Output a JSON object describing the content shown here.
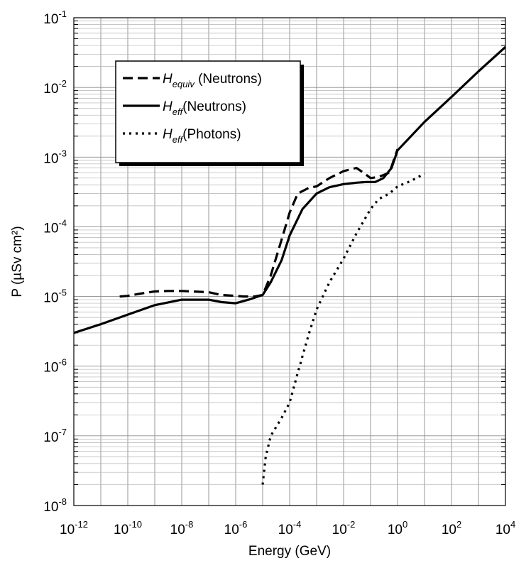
{
  "chart_data": {
    "type": "line",
    "xlabel": "Energy (GeV)",
    "ylabel": "P (µSv cm²)",
    "x_scale": "log",
    "y_scale": "log",
    "xlim": [
      1e-12,
      10000.0
    ],
    "ylim": [
      1e-08,
      0.1
    ],
    "grid": true,
    "legend_position": "top-left",
    "x_ticks": [
      {
        "base": "10",
        "exp": "-12"
      },
      {
        "base": "10",
        "exp": "-10"
      },
      {
        "base": "10",
        "exp": "-8"
      },
      {
        "base": "10",
        "exp": "-6"
      },
      {
        "base": "10",
        "exp": "-4"
      },
      {
        "base": "10",
        "exp": "-2"
      },
      {
        "base": "10",
        "exp": "0"
      },
      {
        "base": "10",
        "exp": "2"
      },
      {
        "base": "10",
        "exp": "4"
      }
    ],
    "y_ticks": [
      {
        "base": "10",
        "exp": "-8"
      },
      {
        "base": "10",
        "exp": "-7"
      },
      {
        "base": "10",
        "exp": "-6"
      },
      {
        "base": "10",
        "exp": "-5"
      },
      {
        "base": "10",
        "exp": "-4"
      },
      {
        "base": "10",
        "exp": "-3"
      },
      {
        "base": "10",
        "exp": "-2"
      },
      {
        "base": "10",
        "exp": "-1"
      }
    ],
    "series": [
      {
        "name": "H_equiv (Neutrons)",
        "symbol": "H",
        "subscript": "equiv",
        "label": "(Neutrons)",
        "style": "dashed",
        "x": [
          5e-11,
          1e-10,
          3e-10,
          1e-09,
          3e-09,
          1e-08,
          1e-07,
          3e-07,
          1e-06,
          2e-06,
          5e-06,
          1e-05,
          2e-05,
          5e-05,
          0.0001,
          0.0002,
          0.0005,
          0.001,
          0.003,
          0.01,
          0.03,
          0.06,
          0.1,
          0.2,
          0.5,
          1
        ],
        "y": [
          1e-05,
          1.02e-05,
          1.1e-05,
          1.18e-05,
          1.2e-05,
          1.2e-05,
          1.15e-05,
          1.05e-05,
          1.02e-05,
          1e-05,
          1e-05,
          1.05e-05,
          2e-05,
          6.5e-05,
          0.00016,
          0.0003,
          0.00036,
          0.00038,
          0.0005,
          0.00063,
          0.0007,
          0.00058,
          0.0005,
          0.00052,
          0.0006,
          0.0013
        ]
      },
      {
        "name": "H_eff (Neutrons)",
        "symbol": "H",
        "subscript": "eff",
        "label": "(Neutrons)",
        "style": "solid",
        "x": [
          1e-12,
          1e-11,
          1e-10,
          1e-09,
          1e-08,
          1e-07,
          3e-07,
          1e-06,
          3e-06,
          1e-05,
          2e-05,
          5e-05,
          0.0001,
          0.0003,
          0.001,
          0.003,
          0.01,
          0.03,
          0.07,
          0.15,
          0.3,
          0.6,
          1,
          10,
          100,
          1000,
          10000
        ],
        "y": [
          3e-06,
          4e-06,
          5.5e-06,
          7.5e-06,
          9e-06,
          9e-06,
          8.3e-06,
          8e-06,
          9e-06,
          1.05e-05,
          1.6e-05,
          3.3e-05,
          7.5e-05,
          0.00018,
          0.0003,
          0.00037,
          0.00041,
          0.00043,
          0.00044,
          0.00044,
          0.0005,
          0.0007,
          0.00125,
          0.0032,
          0.0073,
          0.017,
          0.038
        ]
      },
      {
        "name": "H_eff (Photons)",
        "symbol": "H",
        "subscript": "eff",
        "label": "(Photons)",
        "style": "dotted",
        "x": [
          1e-05,
          1.3e-05,
          2e-05,
          5e-05,
          0.0001,
          0.0002,
          0.0005,
          0.001,
          0.003,
          0.01,
          0.03,
          0.1,
          0.2,
          0.5,
          1,
          3,
          10
        ],
        "y": [
          2e-08,
          5e-08,
          1e-07,
          1.8e-07,
          3e-07,
          8e-07,
          2.8e-06,
          6.5e-06,
          1.6e-05,
          3.5e-05,
          8e-05,
          0.00018,
          0.00025,
          0.0003,
          0.00038,
          0.00045,
          0.00058
        ]
      }
    ]
  }
}
